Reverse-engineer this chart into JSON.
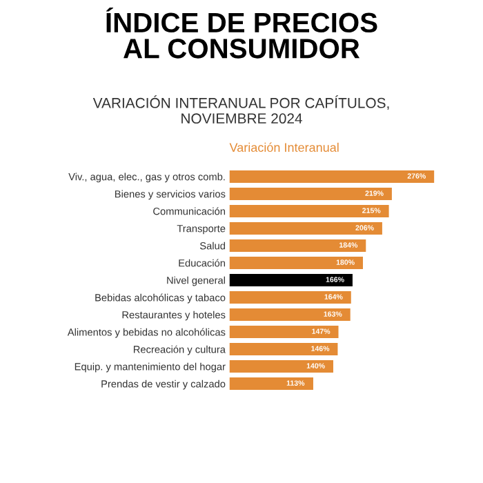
{
  "chart_data": {
    "type": "bar",
    "orientation": "horizontal",
    "title": "ÍNDICE DE PRECIOS\nAL CONSUMIDOR",
    "subtitle": "VARIACIÓN INTERANUAL POR CAPÍTULOS,\nNOVIEMBRE 2024",
    "xlabel": "Variación Interanual",
    "categories": [
      "Viv., agua, elec., gas y otros comb.",
      "Bienes y servicios varios",
      "Communicación",
      "Transporte",
      "Salud",
      "Educación",
      "Nivel general",
      "Bebidas alcohólicas y tabaco",
      "Restaurantes y hoteles",
      "Alimentos y bebidas no alcohólicas",
      "Recreación y cultura",
      "Equip. y mantenimiento del hogar",
      "Prendas de vestir y calzado"
    ],
    "values": [
      276,
      219,
      215,
      206,
      184,
      180,
      166,
      164,
      163,
      147,
      146,
      140,
      113
    ],
    "value_labels": [
      "276%",
      "219%",
      "215%",
      "206%",
      "184%",
      "180%",
      "166%",
      "164%",
      "163%",
      "147%",
      "146%",
      "140%",
      "113%"
    ],
    "colors": [
      "#e48b35",
      "#e48b35",
      "#e48b35",
      "#e48b35",
      "#e48b35",
      "#e48b35",
      "#000000",
      "#e48b35",
      "#e48b35",
      "#e48b35",
      "#e48b35",
      "#e48b35",
      "#e48b35"
    ],
    "tick_labels": "y",
    "grid": false
  }
}
